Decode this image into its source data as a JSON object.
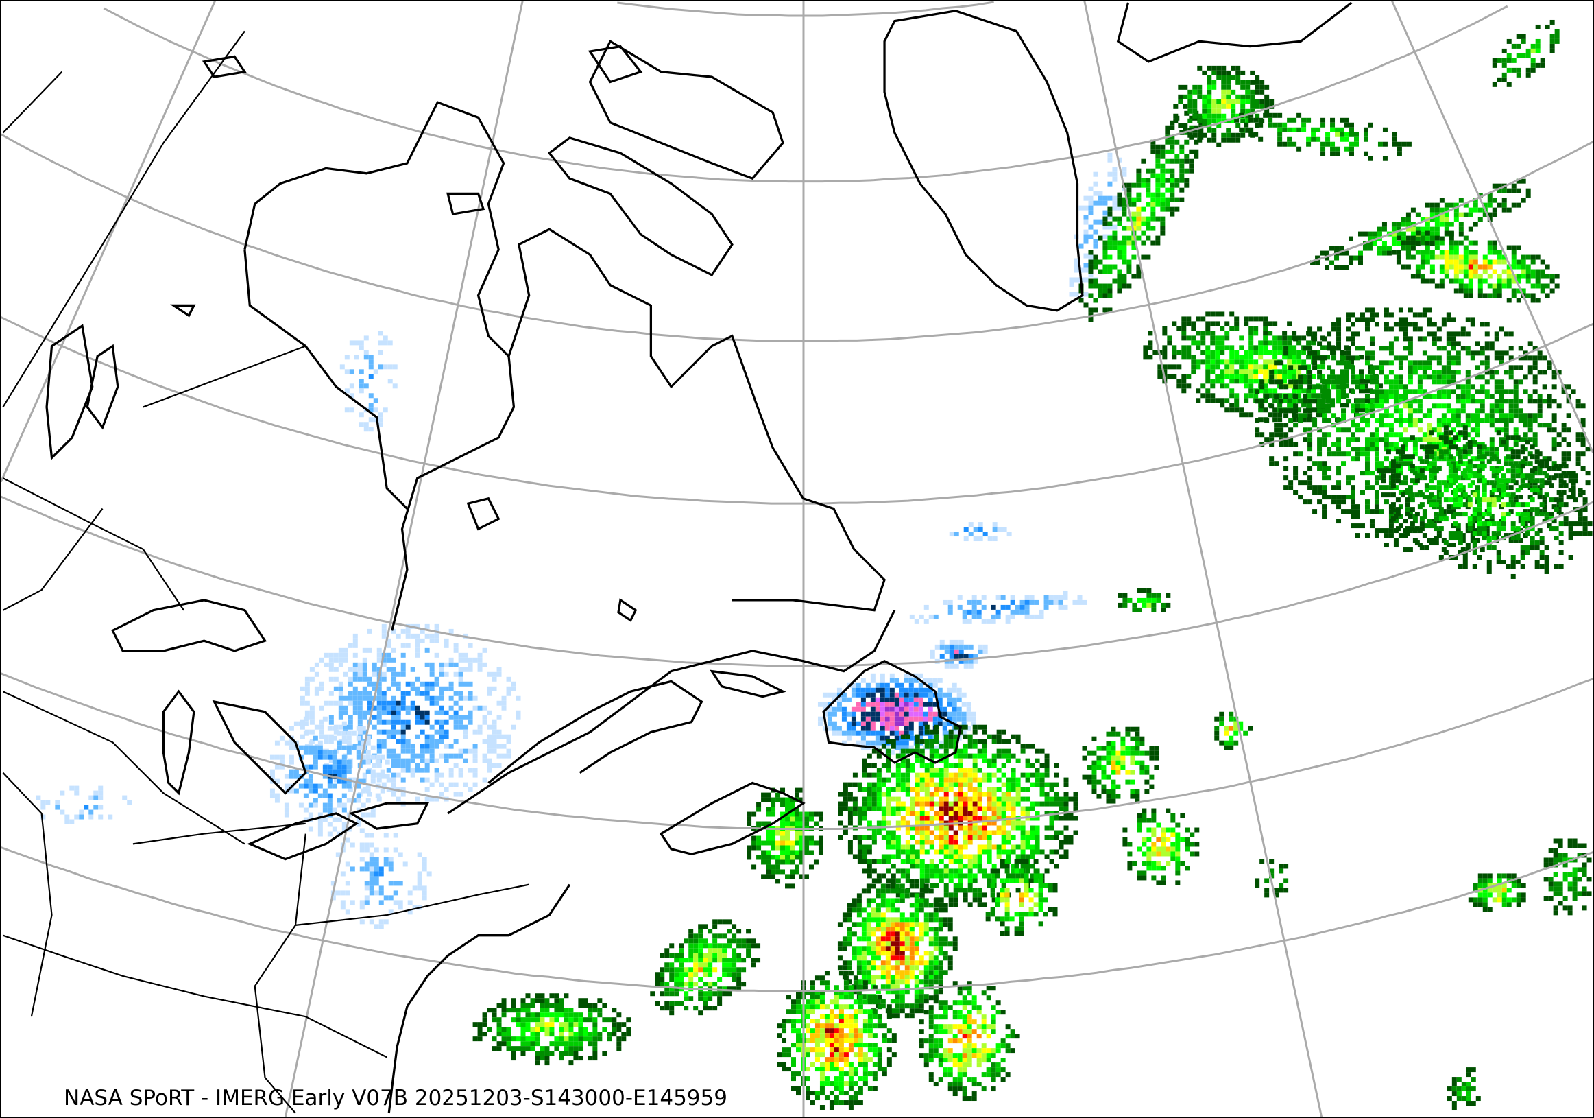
{
  "caption": "NASA SPoRT - IMERG Early V07B 20251203-S143000-E145959",
  "map": {
    "projection": "conic",
    "region": "Eastern Canada, Northeastern US, Greenland, North Atlantic",
    "graticule_color": "#aaaaaa",
    "coastline_color": "#000000",
    "background": "#ffffff"
  },
  "colors": {
    "rain": [
      "#005000",
      "#008c00",
      "#00cc00",
      "#00ff00",
      "#adff2f",
      "#ffff00",
      "#ffc800",
      "#ff8c00",
      "#ff0000",
      "#8b0000"
    ],
    "snow": [
      "#c6e2ff",
      "#63b8ff",
      "#1e90ff",
      "#003366",
      "#ff69b4",
      "#e066ff",
      "#9932cc"
    ]
  }
}
